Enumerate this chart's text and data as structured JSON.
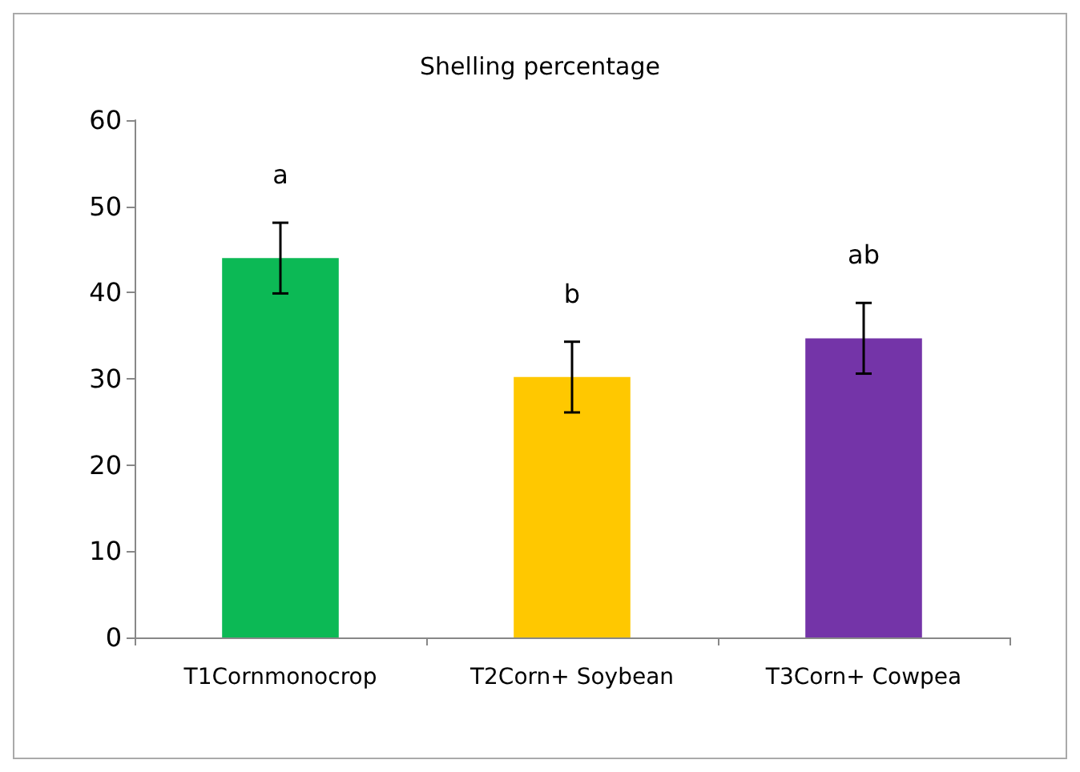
{
  "chart_data": {
    "type": "bar",
    "title": "Shelling percentage",
    "categories": [
      "T1Cornmonocrop",
      "T2Corn+ Soybean",
      "T3Corn+ Cowpea"
    ],
    "values": [
      44,
      30.2,
      34.7
    ],
    "errors": [
      4.1,
      4.1,
      4.1
    ],
    "colors": [
      "#0cb955",
      "#ffc800",
      "#7434a8"
    ],
    "ylim": [
      0,
      60
    ],
    "yticks": [
      0,
      10,
      20,
      30,
      40,
      50,
      60
    ],
    "grid": false,
    "annotations": [
      "a",
      "b",
      "ab"
    ]
  }
}
